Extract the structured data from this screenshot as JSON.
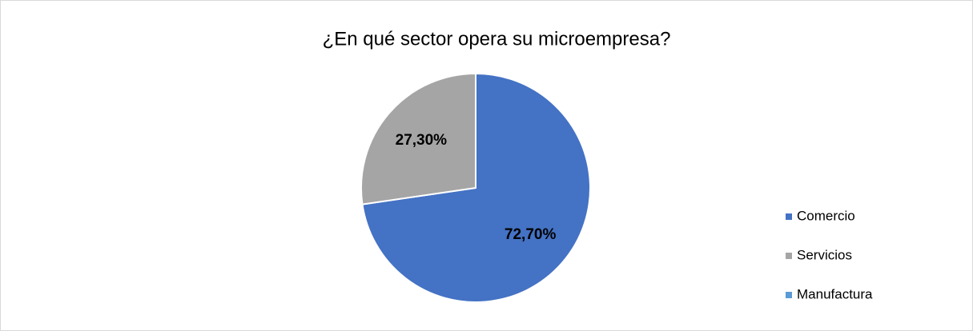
{
  "chart_data": {
    "type": "pie",
    "title": "¿En qué sector opera su microempresa?",
    "categories": [
      "Comercio",
      "Servicios",
      "Manufactura"
    ],
    "values": [
      72.7,
      27.3,
      0
    ],
    "value_labels": [
      "72,70%",
      "27,30%",
      null
    ],
    "colors": [
      "#4472c4",
      "#a5a5a5",
      "#5b9bd5"
    ],
    "legend": "right"
  }
}
